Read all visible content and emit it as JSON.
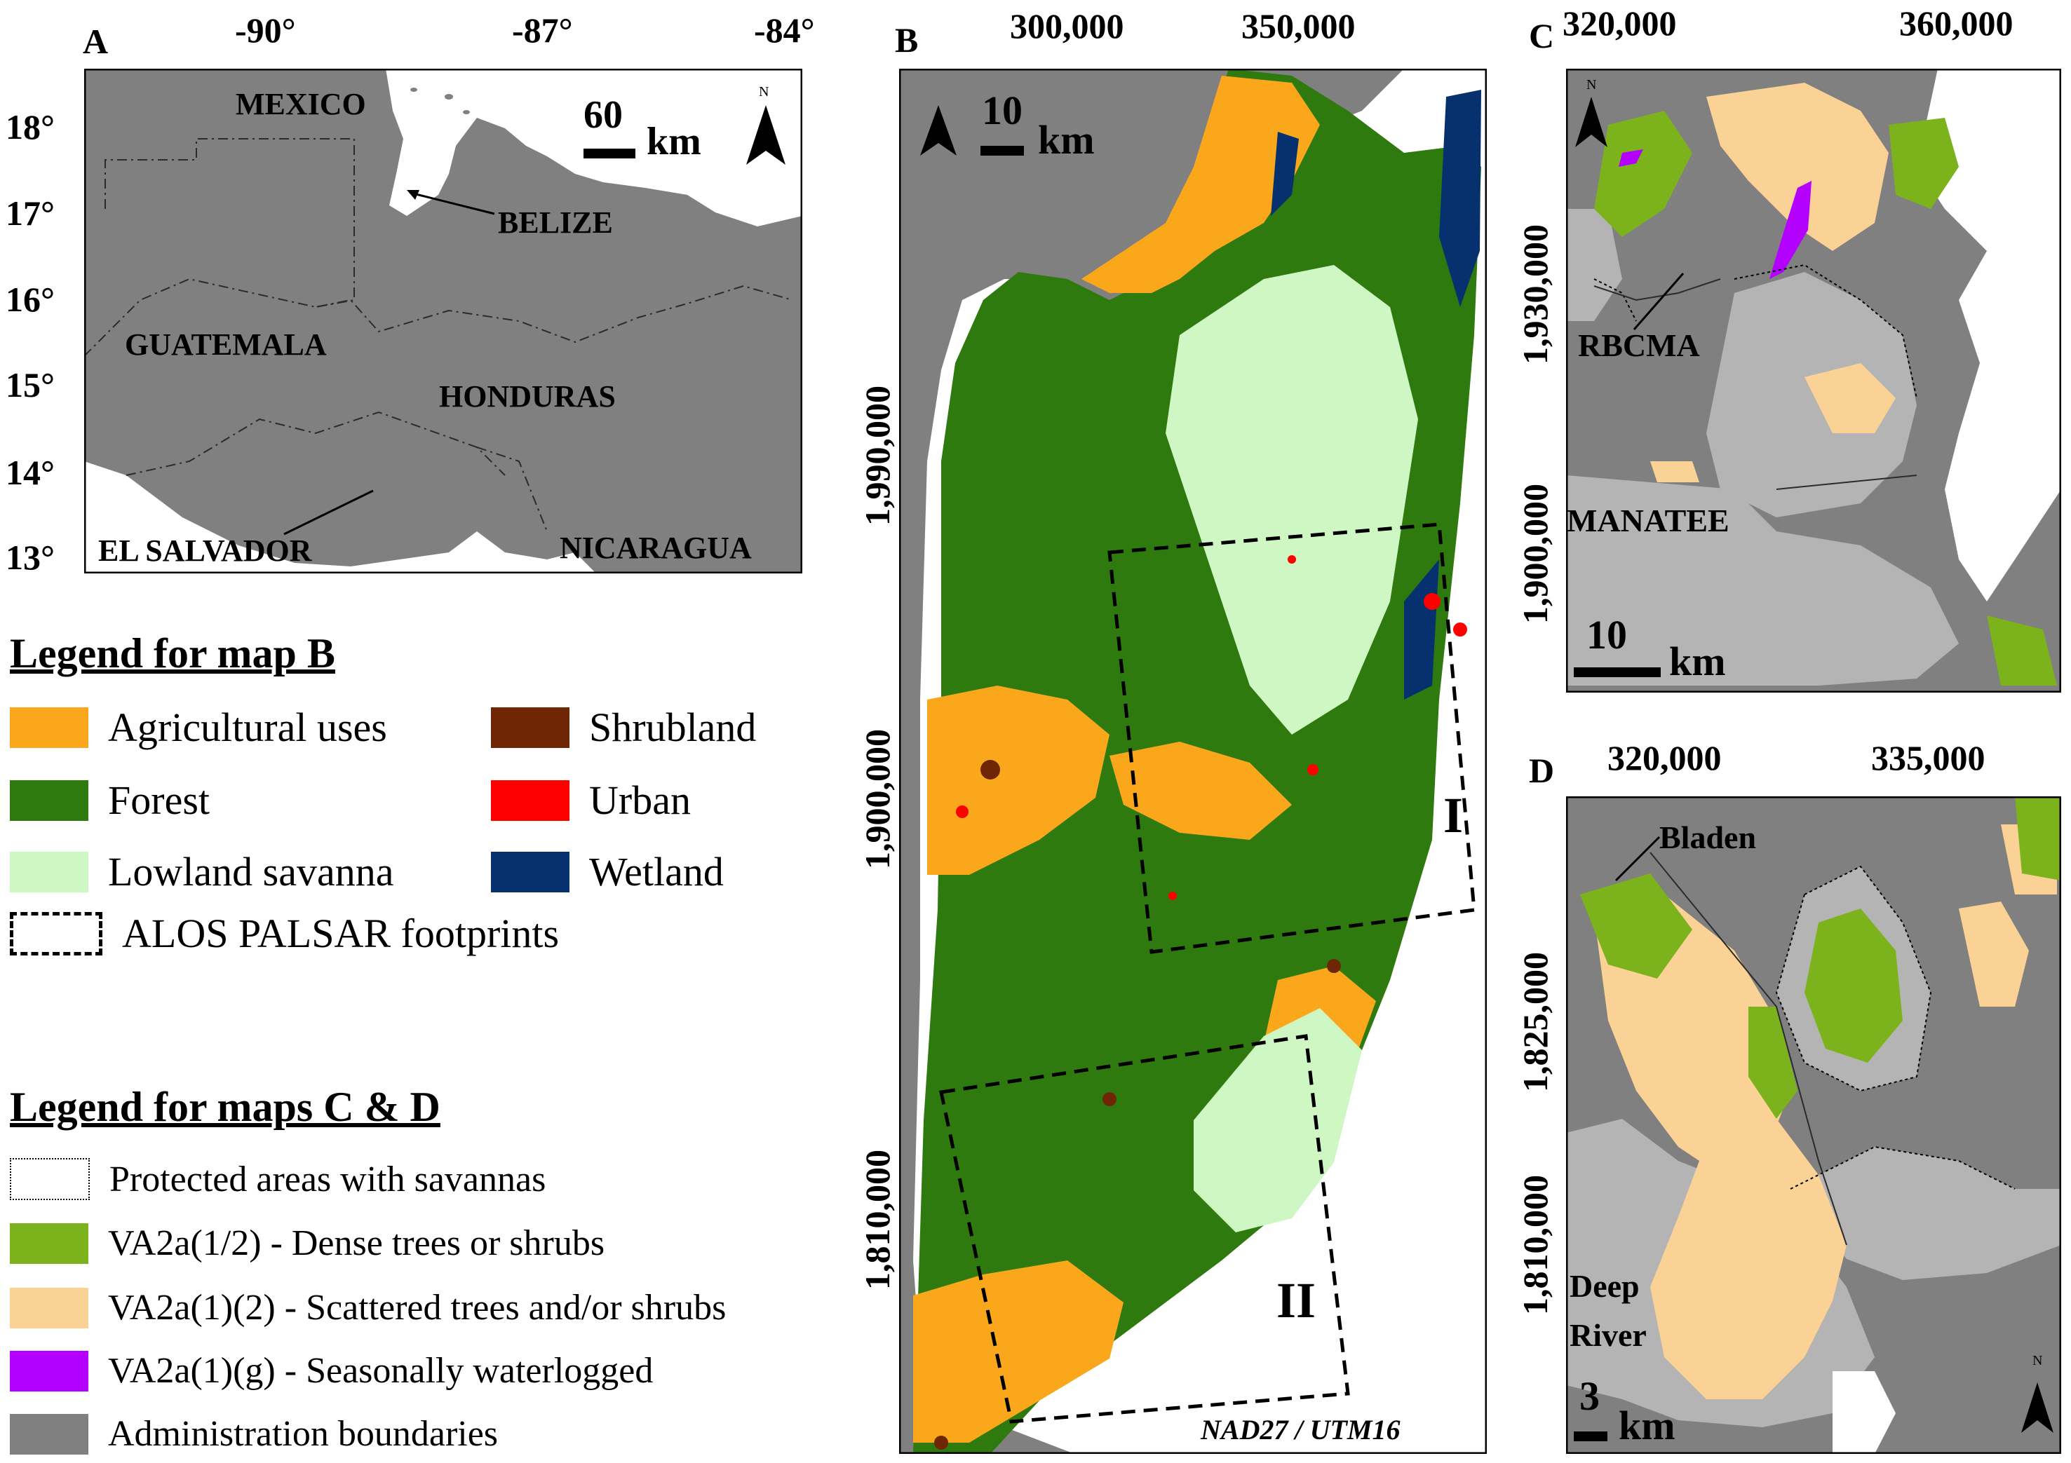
{
  "colors": {
    "agricultural": "#fba71b",
    "forest": "#2f7a0e",
    "lowland_savanna": "#cff7c4",
    "shrubland": "#6e2604",
    "urban": "#ff0000",
    "wetland": "#07306e",
    "dense": "#7cb31c",
    "scattered": "#fbd295",
    "waterlogged": "#b300ff",
    "admin": "#808080",
    "admin_light": "#b4b4b4",
    "sea": "#ffffff"
  },
  "panel_a": {
    "letter": "A",
    "top_ticks": [
      "-90°",
      "-87°",
      "-84°"
    ],
    "left_ticks": [
      "18°",
      "17°",
      "16°",
      "15°",
      "14°",
      "13°"
    ],
    "countries": {
      "mexico": "MEXICO",
      "belize": "BELIZE",
      "guatemala": "GUATEMALA",
      "honduras": "HONDURAS",
      "el_salvador": "EL SALVADOR",
      "nicaragua": "NICARAGUA"
    },
    "scale": {
      "value": "60",
      "unit": "km"
    },
    "north": "N"
  },
  "panel_b": {
    "letter": "B",
    "top_ticks": [
      "300,000",
      "350,000"
    ],
    "left_ticks": [
      "1,990,000",
      "1,900,000",
      "1,810,000"
    ],
    "scale": {
      "value": "10",
      "unit": "km"
    },
    "footprints": [
      "I",
      "II"
    ],
    "crs": "NAD27 / UTM16"
  },
  "panel_c": {
    "letter": "C",
    "top_ticks": [
      "320,000",
      "360,000"
    ],
    "left_ticks": [
      "1,930,000",
      "1,900,000"
    ],
    "labels": {
      "rbcma": "RBCMA",
      "manatee": "MANATEE"
    },
    "scale": {
      "value": "10",
      "unit": "km"
    },
    "north": "N"
  },
  "panel_d": {
    "letter": "D",
    "top_ticks": [
      "320,000",
      "335,000"
    ],
    "left_ticks": [
      "1,825,000",
      "1,810,000"
    ],
    "labels": {
      "bladen": "Bladen",
      "deep_river_1": "Deep",
      "deep_river_2": "River"
    },
    "scale": {
      "value": "3",
      "unit": "km"
    },
    "north": "N"
  },
  "legend_b": {
    "title": "Legend for map B",
    "items": {
      "agricultural": "Agricultural uses",
      "shrubland": "Shrubland",
      "forest": "Forest",
      "urban": "Urban",
      "lowland_savanna": "Lowland savanna",
      "wetland": "Wetland",
      "footprints": "ALOS PALSAR footprints"
    }
  },
  "legend_cd": {
    "title": "Legend for maps C & D",
    "items": {
      "protected": "Protected areas with savannas",
      "dense": "VA2a(1/2) - Dense trees or shrubs",
      "scattered": "VA2a(1)(2) - Scattered trees and/or shrubs",
      "waterlogged": "VA2a(1)(g) - Seasonally waterlogged",
      "admin": "Administration boundaries"
    }
  }
}
